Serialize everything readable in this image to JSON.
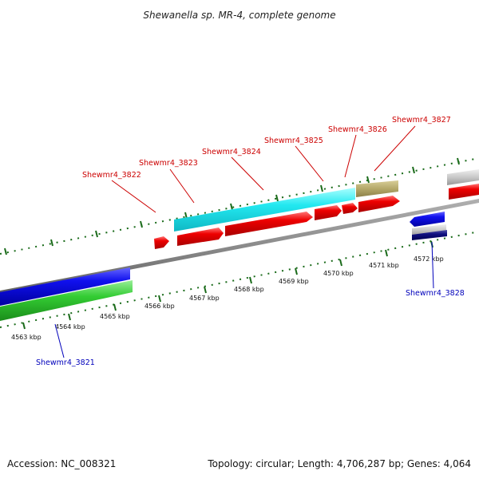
{
  "title": "Shewanella sp. MR-4, complete genome",
  "footer": {
    "accession": "Accession: NC_008321",
    "summary": "Topology: circular; Length: 4,706,287 bp; Genes: 4,064"
  },
  "colors": {
    "forward_label": "#cc0000",
    "reverse_label": "#0000bb",
    "tick": "#1a6b1a",
    "backbone": "#888888"
  },
  "scale_labels": [
    "4563 kbp",
    "4564 kbp",
    "4565 kbp",
    "4566 kbp",
    "4567 kbp",
    "4568 kbp",
    "4569 kbp",
    "4570 kbp",
    "4571 kbp",
    "4572 kbp"
  ],
  "genes": [
    {
      "label": "Shewmr4_3821",
      "strand": "reverse"
    },
    {
      "label": "Shewmr4_3822",
      "strand": "forward"
    },
    {
      "label": "Shewmr4_3823",
      "strand": "forward"
    },
    {
      "label": "Shewmr4_3824",
      "strand": "forward"
    },
    {
      "label": "Shewmr4_3825",
      "strand": "forward"
    },
    {
      "label": "Shewmr4_3826",
      "strand": "forward"
    },
    {
      "label": "Shewmr4_3827",
      "strand": "forward"
    },
    {
      "label": "Shewmr4_3828",
      "strand": "reverse"
    }
  ]
}
